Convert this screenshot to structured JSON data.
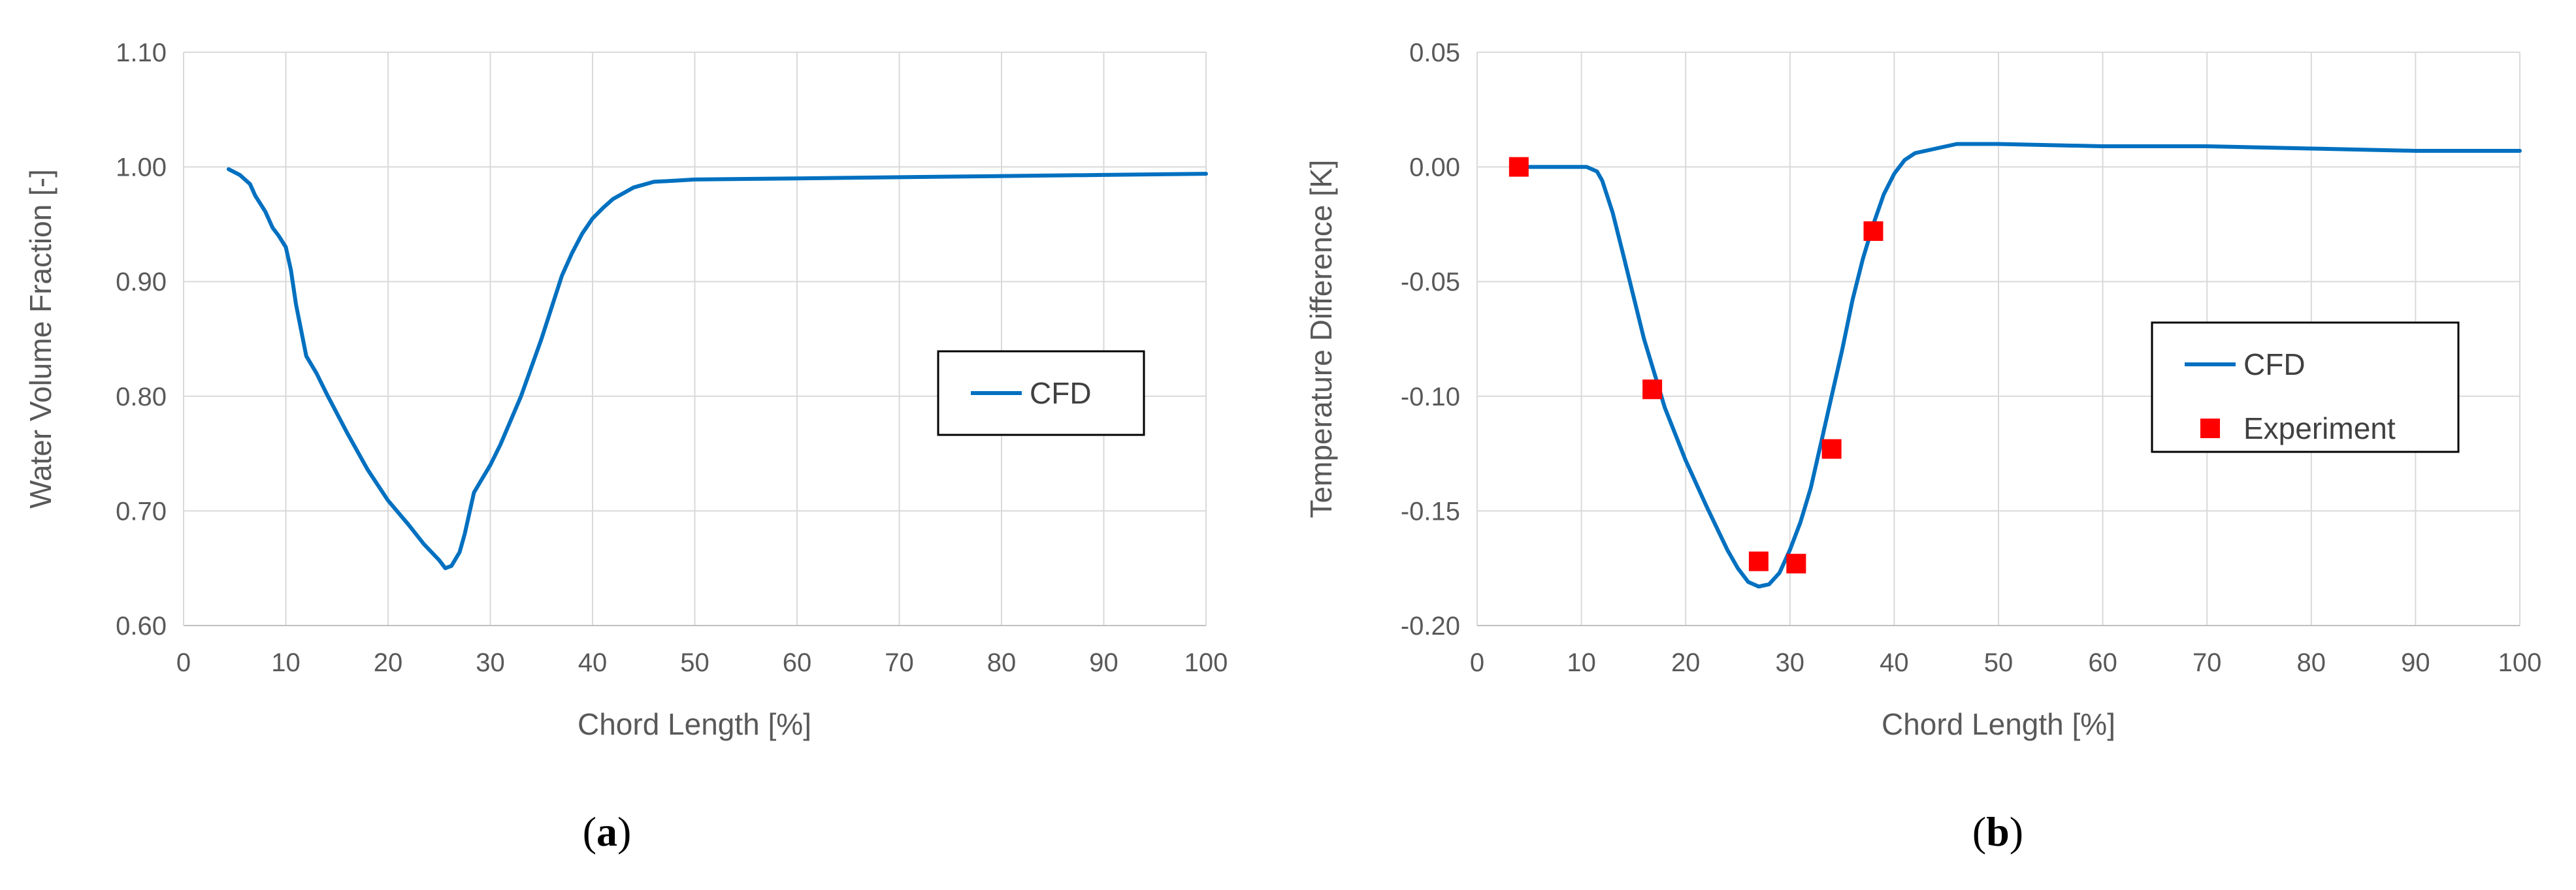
{
  "chart_data": [
    {
      "type": "line",
      "panel_label": {
        "open": "(",
        "letter": "a",
        "close": ")"
      },
      "xlabel": "Chord Length [%]",
      "ylabel": "Water Volume Fraction [-]",
      "xlim": [
        0,
        100
      ],
      "ylim": [
        0.6,
        1.1
      ],
      "x_ticks": [
        "0",
        "10",
        "20",
        "30",
        "40",
        "50",
        "60",
        "70",
        "80",
        "90",
        "100"
      ],
      "y_ticks": [
        "0.60",
        "0.70",
        "0.80",
        "0.90",
        "1.00",
        "1.10"
      ],
      "grid": true,
      "legend_position": "right",
      "series": [
        {
          "name": "CFD",
          "color": "#0070C0",
          "style": "line",
          "x": [
            4.4,
            5.5,
            6.5,
            7.0,
            8.0,
            8.7,
            9.3,
            10.0,
            10.5,
            11.0,
            12.0,
            13.0,
            14.0,
            16.0,
            18.0,
            20.0,
            22.0,
            23.5,
            25.0,
            25.6,
            26.2,
            27.0,
            27.5,
            28.0,
            28.4,
            29.0,
            30.0,
            31.0,
            33.0,
            35.0,
            37.0,
            38.0,
            39.0,
            40.0,
            41.0,
            42.0,
            44.0,
            46.0,
            48.0,
            50.0,
            60.0,
            70.0,
            80.0,
            90.0,
            100.0
          ],
          "y": [
            0.998,
            0.993,
            0.985,
            0.975,
            0.961,
            0.947,
            0.94,
            0.93,
            0.91,
            0.88,
            0.835,
            0.82,
            0.802,
            0.768,
            0.736,
            0.709,
            0.688,
            0.671,
            0.657,
            0.65,
            0.652,
            0.664,
            0.68,
            0.7,
            0.716,
            0.725,
            0.74,
            0.758,
            0.8,
            0.85,
            0.905,
            0.925,
            0.942,
            0.955,
            0.964,
            0.972,
            0.982,
            0.987,
            0.988,
            0.989,
            0.99,
            0.991,
            0.992,
            0.993,
            0.994
          ]
        }
      ]
    },
    {
      "type": "line",
      "panel_label": {
        "open": "(",
        "letter": "b",
        "close": ")"
      },
      "xlabel": "Chord Length [%]",
      "ylabel": "Temperature Difference [K]",
      "xlim": [
        0,
        100
      ],
      "ylim": [
        -0.2,
        0.05
      ],
      "x_ticks": [
        "0",
        "10",
        "20",
        "30",
        "40",
        "50",
        "60",
        "70",
        "80",
        "90",
        "100"
      ],
      "y_ticks": [
        "-0.20",
        "-0.15",
        "-0.10",
        "-0.05",
        "0.00",
        "0.05"
      ],
      "grid": true,
      "legend_position": "right",
      "series": [
        {
          "name": "CFD",
          "color": "#0070C0",
          "style": "line",
          "x": [
            4.0,
            6.0,
            8.0,
            9.5,
            10.5,
            11.0,
            11.5,
            12.0,
            13.0,
            14.0,
            16.0,
            18.0,
            20.0,
            22.0,
            24.0,
            25.0,
            26.0,
            27.0,
            28.0,
            29.0,
            30.0,
            31.0,
            32.0,
            33.0,
            34.0,
            35.0,
            36.0,
            37.0,
            38.0,
            39.0,
            40.0,
            41.0,
            42.0,
            43.0,
            44.0,
            46.0,
            48.0,
            50.0,
            60.0,
            70.0,
            80.0,
            90.0,
            100.0
          ],
          "y": [
            0.0,
            0.0,
            0.0,
            0.0,
            0.0,
            -0.001,
            -0.002,
            -0.006,
            -0.02,
            -0.038,
            -0.075,
            -0.105,
            -0.128,
            -0.148,
            -0.167,
            -0.175,
            -0.181,
            -0.183,
            -0.182,
            -0.177,
            -0.167,
            -0.155,
            -0.14,
            -0.12,
            -0.1,
            -0.08,
            -0.058,
            -0.04,
            -0.025,
            -0.012,
            -0.003,
            0.003,
            0.006,
            0.007,
            0.008,
            0.01,
            0.01,
            0.01,
            0.009,
            0.009,
            0.008,
            0.007,
            0.007
          ]
        },
        {
          "name": "Experiment",
          "color": "#FF0000",
          "style": "marker",
          "x": [
            4.0,
            16.8,
            27.0,
            30.6,
            34.0,
            38.0
          ],
          "y": [
            0.0,
            -0.097,
            -0.172,
            -0.173,
            -0.123,
            -0.028
          ]
        }
      ]
    }
  ]
}
